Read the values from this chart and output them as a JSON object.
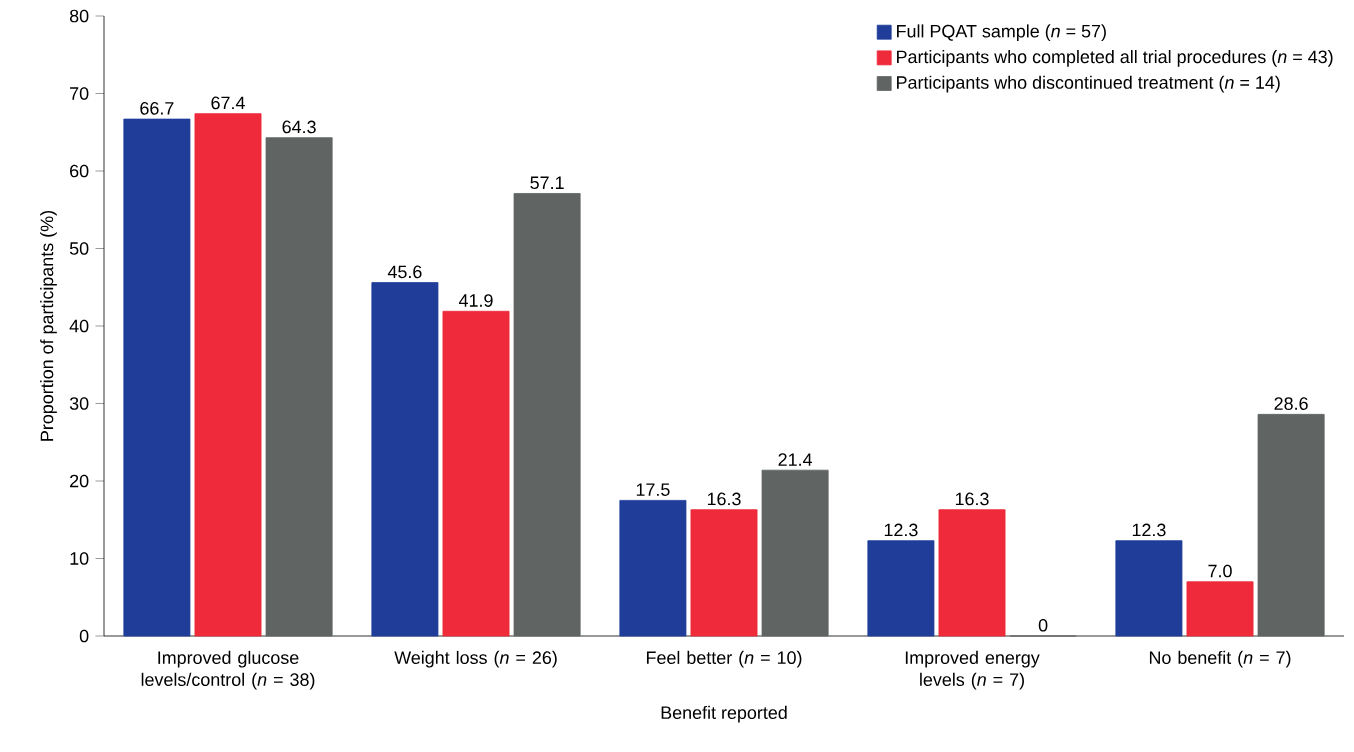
{
  "chart_data": {
    "type": "bar",
    "xlabel": "Benefit reported",
    "ylabel": "Proportion of participants (%)",
    "categories": [
      "Improved glucose levels/control (*n* = 38)",
      "Weight loss (*n* = 26)",
      "Feel better (*n* = 10)",
      "Improved energy levels (*n* = 7)",
      "No benefit (*n* = 7)"
    ],
    "series": [
      {
        "name": "Full PQAT sample (*n* = 57)",
        "color": "#1f3d99",
        "values": [
          66.7,
          45.6,
          17.5,
          12.3,
          12.3
        ],
        "value_labels": [
          "66.7",
          "45.6",
          "17.5",
          "12.3",
          "12.3"
        ]
      },
      {
        "name": "Participants who completed all trial procedures (*n* = 43)",
        "color": "#ee2a3b",
        "values": [
          67.4,
          41.9,
          16.3,
          16.3,
          7.0
        ],
        "value_labels": [
          "67.4",
          "41.9",
          "16.3",
          "16.3",
          "7.0"
        ]
      },
      {
        "name": "Participants who discontinued treatment (*n* = 14)",
        "color": "#606462",
        "values": [
          64.3,
          57.1,
          21.4,
          0,
          28.6
        ],
        "value_labels": [
          "64.3",
          "57.1",
          "21.4",
          "0",
          "28.6"
        ]
      }
    ],
    "ylim": [
      0,
      80
    ],
    "yticks": [
      0,
      10,
      20,
      30,
      40,
      50,
      60,
      70,
      80
    ],
    "legend": "top right",
    "grid": false
  }
}
